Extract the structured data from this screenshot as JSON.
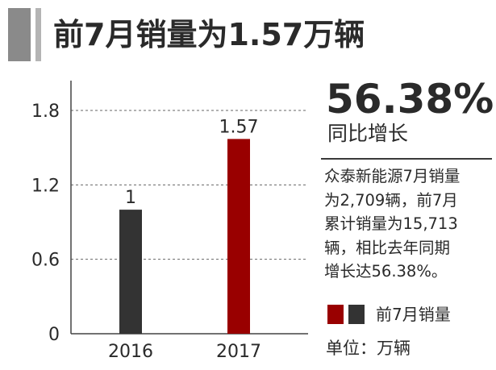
{
  "title": "前7月销量为1.57万辆",
  "highlight": {
    "percent": "56.38%",
    "caption": "同比增长"
  },
  "description_lines": [
    "众泰新能源7月销量",
    "为2,709辆，前7月",
    "累计销量为15,713",
    "辆，相比去年同期",
    "增长达56.38%。"
  ],
  "legend": {
    "label": "前7月销量",
    "colors": [
      "#990000",
      "#333333"
    ]
  },
  "unit": "单位：万辆",
  "chart_data": {
    "type": "bar",
    "categories": [
      "2016",
      "2017"
    ],
    "values": [
      1,
      1.57
    ],
    "value_labels": [
      "1",
      "1.57"
    ],
    "colors": [
      "#333333",
      "#990000"
    ],
    "ylim": [
      0,
      1.8
    ],
    "yticks": [
      0,
      0.6,
      1.2,
      1.8
    ],
    "ytick_labels": [
      "0",
      "0.6",
      "1.2",
      "1.8"
    ],
    "grid": true,
    "title": "",
    "xlabel": "",
    "ylabel": ""
  }
}
